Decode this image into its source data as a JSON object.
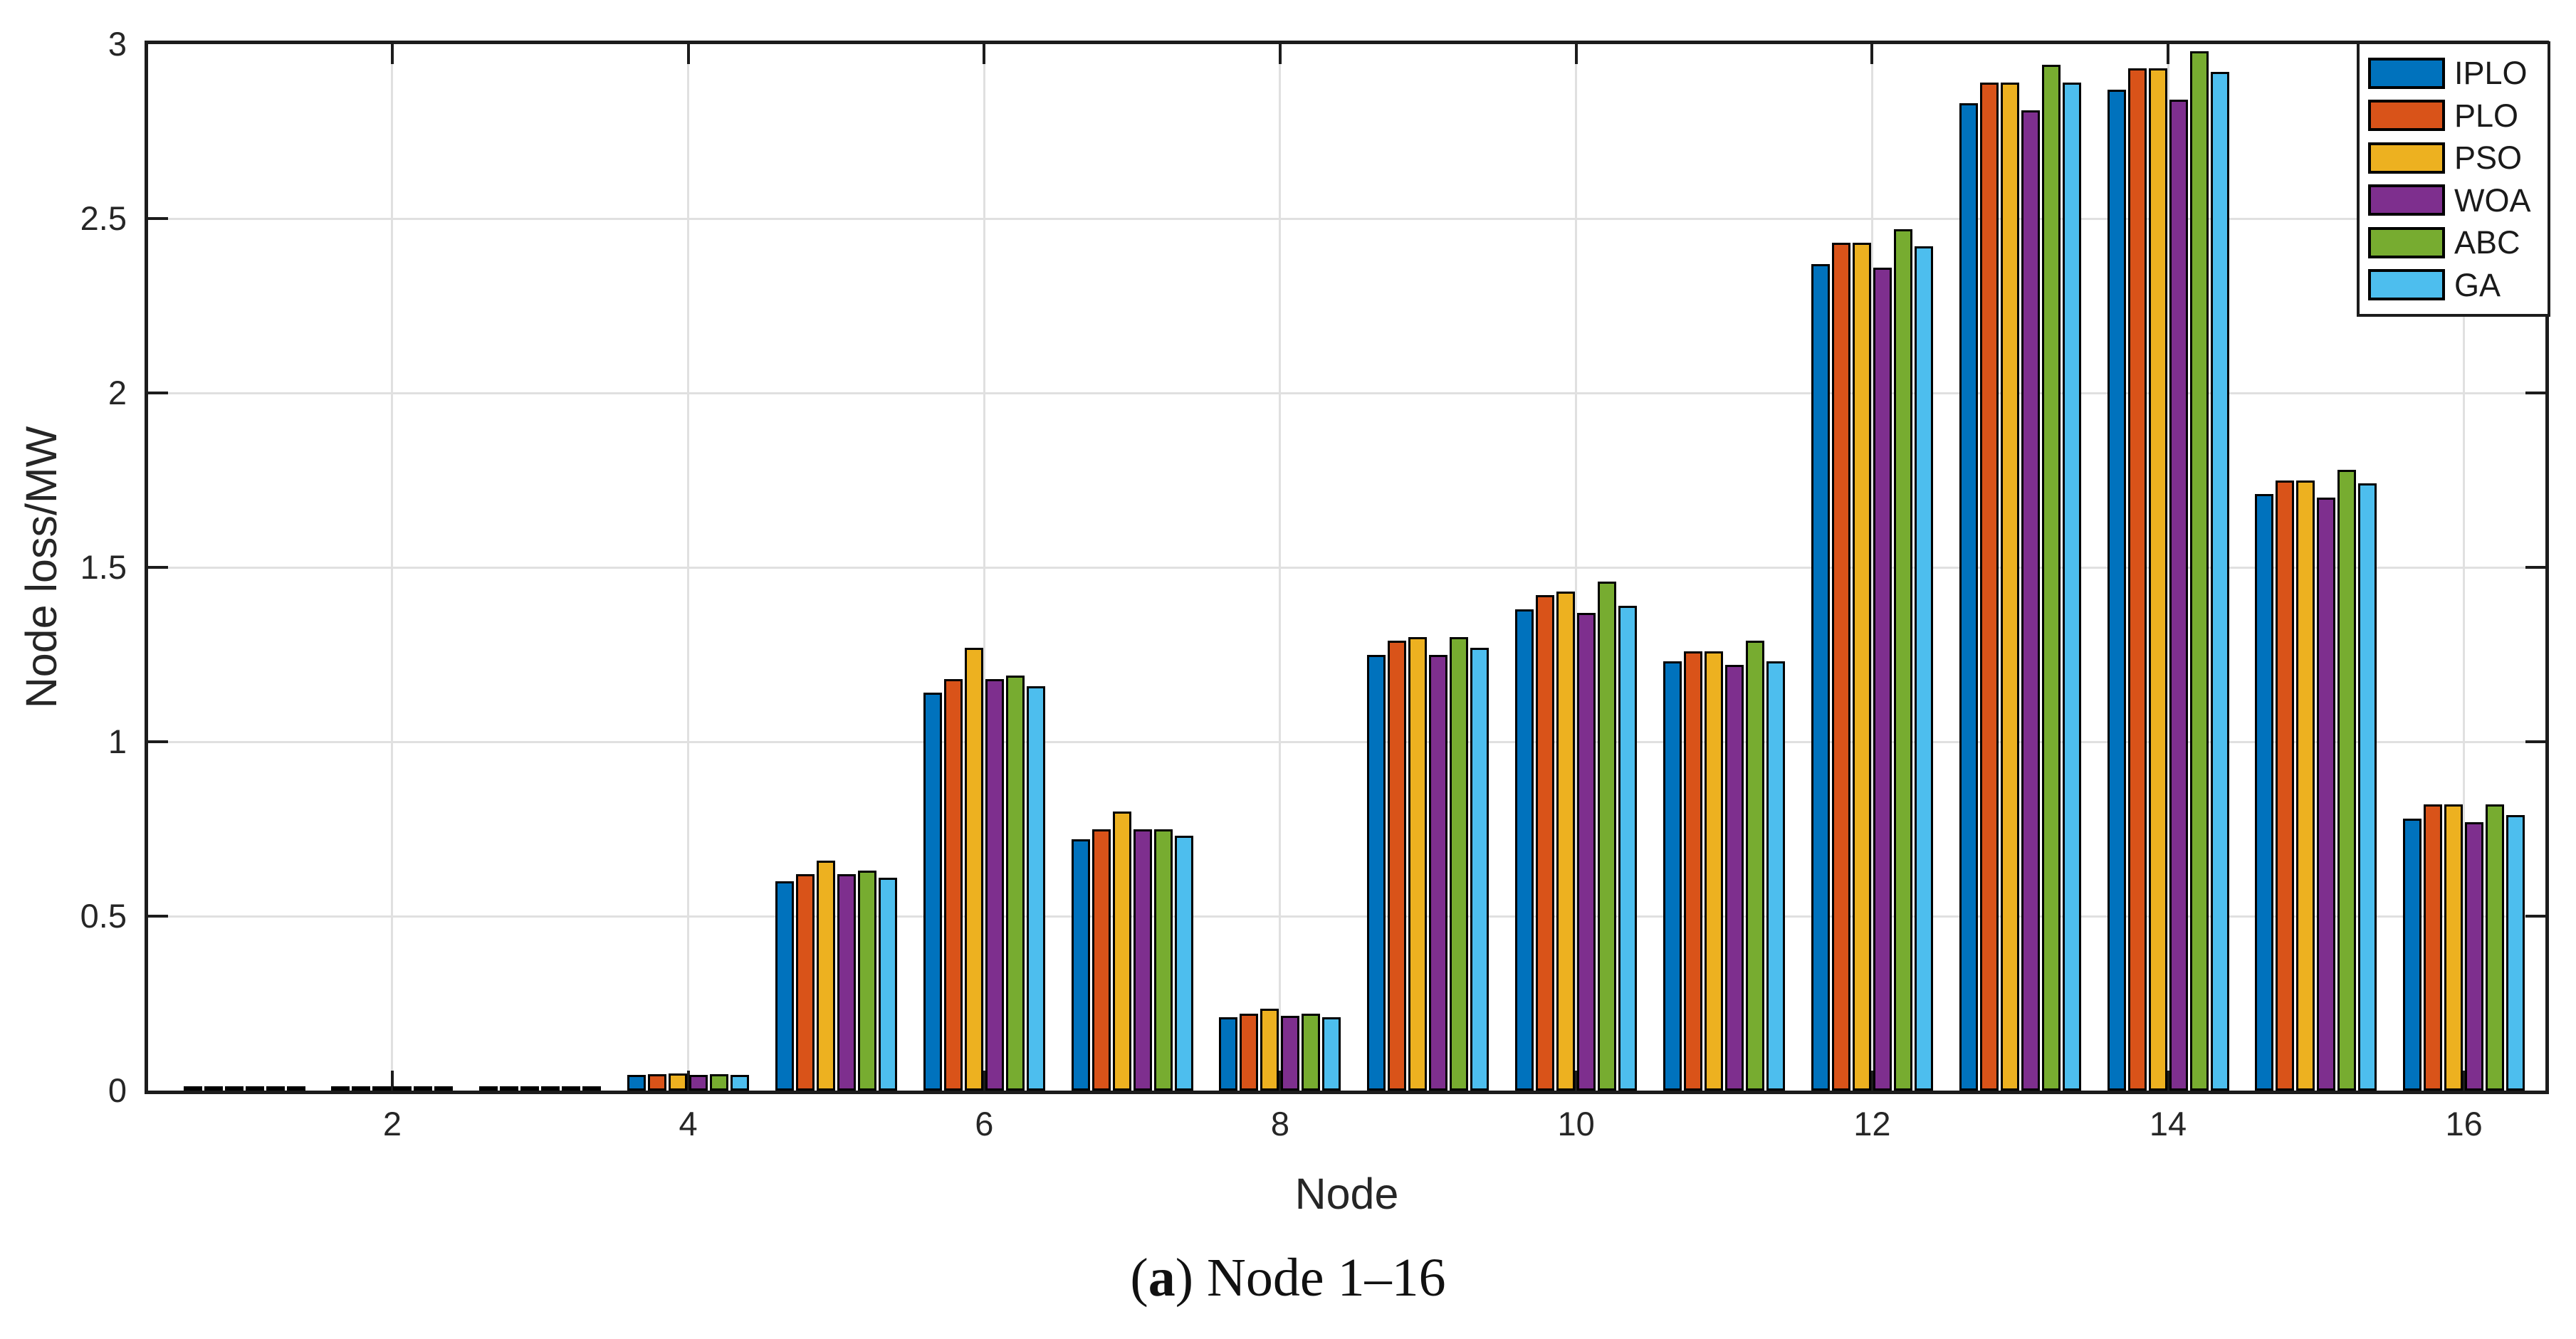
{
  "figure": {
    "caption": {
      "open_paren": "(",
      "letter": "a",
      "rest": ") Node 1–16"
    }
  },
  "style": {
    "axis_color": "#1c1c1c",
    "grid_color": "#e0e0e0",
    "tick_label_color": "#262626",
    "bar_edge_color": "#000000",
    "background": "#ffffff"
  },
  "chart_data": {
    "type": "bar",
    "title": "",
    "xlabel": "Node",
    "ylabel": "Node loss/MW",
    "categories": [
      1,
      2,
      3,
      4,
      5,
      6,
      7,
      8,
      9,
      10,
      11,
      12,
      13,
      14,
      15,
      16
    ],
    "series": [
      {
        "name": "IPLO",
        "color": "#0072BD",
        "values": [
          0.001,
          0.002,
          0.005,
          0.045,
          0.6,
          1.14,
          0.72,
          0.21,
          1.25,
          1.38,
          1.23,
          2.37,
          2.83,
          2.87,
          1.71,
          0.78
        ]
      },
      {
        "name": "PLO",
        "color": "#D95319",
        "values": [
          0.001,
          0.002,
          0.005,
          0.047,
          0.62,
          1.18,
          0.75,
          0.22,
          1.29,
          1.42,
          1.26,
          2.43,
          2.89,
          2.93,
          1.75,
          0.82
        ]
      },
      {
        "name": "PSO",
        "color": "#EDB120",
        "values": [
          0.001,
          0.002,
          0.006,
          0.049,
          0.66,
          1.27,
          0.8,
          0.235,
          1.3,
          1.43,
          1.26,
          2.43,
          2.89,
          2.93,
          1.75,
          0.82
        ]
      },
      {
        "name": "WOA",
        "color": "#7E2F8E",
        "values": [
          0.001,
          0.002,
          0.005,
          0.044,
          0.62,
          1.18,
          0.75,
          0.215,
          1.25,
          1.37,
          1.22,
          2.36,
          2.81,
          2.84,
          1.7,
          0.77
        ]
      },
      {
        "name": "ABC",
        "color": "#77AC30",
        "values": [
          0.001,
          0.002,
          0.005,
          0.046,
          0.63,
          1.19,
          0.75,
          0.22,
          1.3,
          1.46,
          1.29,
          2.47,
          2.94,
          2.98,
          1.78,
          0.82
        ]
      },
      {
        "name": "GA",
        "color": "#4DBEEE",
        "values": [
          0.001,
          0.002,
          0.005,
          0.044,
          0.61,
          1.16,
          0.73,
          0.21,
          1.27,
          1.39,
          1.23,
          2.42,
          2.89,
          2.92,
          1.74,
          0.79
        ]
      }
    ],
    "xticks": [
      2,
      4,
      6,
      8,
      10,
      12,
      14,
      16
    ],
    "yticks": [
      0,
      0.5,
      1,
      1.5,
      2,
      2.5,
      3
    ],
    "ytick_labels": [
      "0",
      "0.5",
      "1",
      "1.5",
      "2",
      "2.5",
      "3"
    ],
    "ylim": [
      0,
      3
    ],
    "xlim": [
      0.35,
      16.55
    ],
    "grid": true,
    "legend": {
      "position": "top-right",
      "entries": [
        "IPLO",
        "PLO",
        "PSO",
        "WOA",
        "ABC",
        "GA"
      ]
    }
  }
}
